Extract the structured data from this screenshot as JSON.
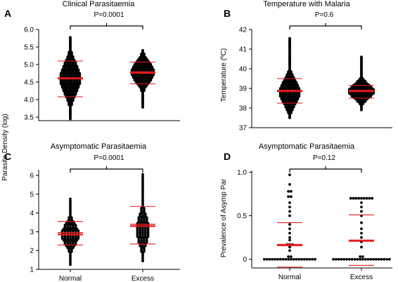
{
  "figure": {
    "shared_ylabel": "Parasite Density (log)"
  },
  "chart_data": [
    {
      "id": "A",
      "letter": "A",
      "type": "scatter",
      "title": "Clinical Parasitaemia",
      "ylabel": "",
      "categories": [
        "Normal",
        "Excess"
      ],
      "show_xticks": false,
      "ylim": [
        3.4,
        6.0
      ],
      "yticks": [
        3.5,
        4.0,
        4.5,
        5.0,
        5.5,
        6.0
      ],
      "ytick_labels": [
        "3.5",
        "4.0",
        "4.5",
        "5.0",
        "5.5",
        "6.0"
      ],
      "pvalue": "P=0.0001",
      "summary": [
        {
          "category": "Normal",
          "mean": 4.6,
          "mean_upper": 4.62,
          "lower": 4.08,
          "upper": 5.1
        },
        {
          "category": "Excess",
          "mean": 4.76,
          "mean_upper": 4.79,
          "lower": 4.45,
          "upper": 5.07
        }
      ],
      "distribution": [
        {
          "category": "Normal",
          "min": 3.45,
          "max": 5.78,
          "center": 4.6,
          "spread": 0.42,
          "widest": 8,
          "step": 0.025
        },
        {
          "category": "Excess",
          "min": 3.78,
          "max": 5.42,
          "center": 4.78,
          "spread": 0.28,
          "widest": 9,
          "step": 0.025
        }
      ],
      "colors": {
        "points": "#000000",
        "summary": "#e31a1c"
      },
      "grid": false
    },
    {
      "id": "B",
      "letter": "B",
      "type": "scatter",
      "title": "Temperature with Malaria",
      "ylabel": "Temperature (ºC)",
      "categories": [
        "Normal",
        "Excess"
      ],
      "show_xticks": false,
      "ylim": [
        37,
        42
      ],
      "yticks": [
        37,
        38,
        39,
        40,
        41,
        42
      ],
      "ytick_labels": [
        "37",
        "38",
        "39",
        "40",
        "41",
        "42"
      ],
      "pvalue": "P=0.6",
      "summary": [
        {
          "category": "Normal",
          "mean": 38.85,
          "mean_upper": 38.9,
          "lower": 38.25,
          "upper": 39.5
        },
        {
          "category": "Excess",
          "mean": 38.85,
          "mean_upper": 38.9,
          "lower": 38.5,
          "upper": 39.15
        }
      ],
      "distribution": [
        {
          "category": "Normal",
          "min": 37.5,
          "max": 41.55,
          "center": 38.8,
          "spread": 0.6,
          "widest": 8,
          "step": 0.05
        },
        {
          "category": "Excess",
          "min": 37.9,
          "max": 40.6,
          "center": 38.85,
          "spread": 0.35,
          "widest": 10,
          "step": 0.05
        }
      ],
      "colors": {
        "points": "#000000",
        "summary": "#e31a1c"
      },
      "grid": false
    },
    {
      "id": "C",
      "letter": "C",
      "type": "scatter",
      "title": "Asymptomatic Parasitaemia",
      "ylabel": "",
      "categories": [
        "Normal",
        "Excess"
      ],
      "show_xticks": true,
      "ylim": [
        1,
        6.3
      ],
      "yticks": [
        1,
        2,
        3,
        4,
        5,
        6
      ],
      "ytick_labels": [
        "1",
        "2",
        "3",
        "4",
        "5",
        "6"
      ],
      "pvalue": "P=0.0001",
      "summary": [
        {
          "category": "Normal",
          "mean": 2.85,
          "mean_upper": 2.95,
          "lower": 2.3,
          "upper": 3.55
        },
        {
          "category": "Excess",
          "mean": 3.3,
          "mean_upper": 3.4,
          "lower": 2.35,
          "upper": 4.35
        }
      ],
      "distribution": [
        {
          "category": "Normal",
          "min": 1.25,
          "max": 4.75,
          "center": 2.85,
          "spread": 0.55,
          "widest": 7,
          "step": 0.1
        },
        {
          "category": "Excess",
          "min": 1.45,
          "max": 6.1,
          "center": 3.1,
          "spread": 0.8,
          "widest": 5,
          "step": 0.1
        }
      ],
      "colors": {
        "points": "#000000",
        "summary": "#e31a1c"
      },
      "grid": false
    },
    {
      "id": "D",
      "letter": "D",
      "type": "scatter",
      "title": "Asymptomatic Parasitaemia",
      "ylabel": "Prevalence of Asymp Par",
      "categories": [
        "Normal",
        "Excess"
      ],
      "show_xticks": true,
      "ylim": [
        -0.1,
        1.02
      ],
      "yticks": [
        0,
        0.5,
        1.0
      ],
      "ytick_labels": [
        "0",
        "0.5",
        "1.0"
      ],
      "pvalue": "P=0.12",
      "summary": [
        {
          "category": "Normal",
          "mean": 0.16,
          "mean_upper": 0.17,
          "lower": -0.09,
          "upper": 0.42
        },
        {
          "category": "Excess",
          "mean": 0.21,
          "mean_upper": 0.22,
          "lower": -0.07,
          "upper": 0.51
        }
      ],
      "levels": [
        {
          "category": "Normal",
          "points": [
            [
              0.0,
              20
            ],
            [
              0.03,
              2
            ],
            [
              0.1,
              1
            ],
            [
              0.14,
              1
            ],
            [
              0.17,
              3
            ],
            [
              0.22,
              1
            ],
            [
              0.25,
              1
            ],
            [
              0.3,
              1
            ],
            [
              0.35,
              1
            ],
            [
              0.4,
              1
            ],
            [
              0.5,
              1
            ],
            [
              0.55,
              1
            ],
            [
              0.6,
              1
            ],
            [
              0.65,
              1
            ],
            [
              0.72,
              2
            ],
            [
              0.78,
              2
            ],
            [
              0.86,
              1
            ],
            [
              0.97,
              1
            ]
          ]
        },
        {
          "category": "Excess",
          "points": [
            [
              0.0,
              22
            ],
            [
              0.03,
              2
            ],
            [
              0.14,
              1
            ],
            [
              0.2,
              1
            ],
            [
              0.25,
              1
            ],
            [
              0.3,
              1
            ],
            [
              0.35,
              1
            ],
            [
              0.42,
              1
            ],
            [
              0.5,
              1
            ],
            [
              0.55,
              1
            ],
            [
              0.6,
              1
            ],
            [
              0.65,
              1
            ],
            [
              0.7,
              9
            ]
          ]
        }
      ],
      "colors": {
        "points": "#000000",
        "summary": "#e31a1c"
      },
      "grid": false
    }
  ]
}
